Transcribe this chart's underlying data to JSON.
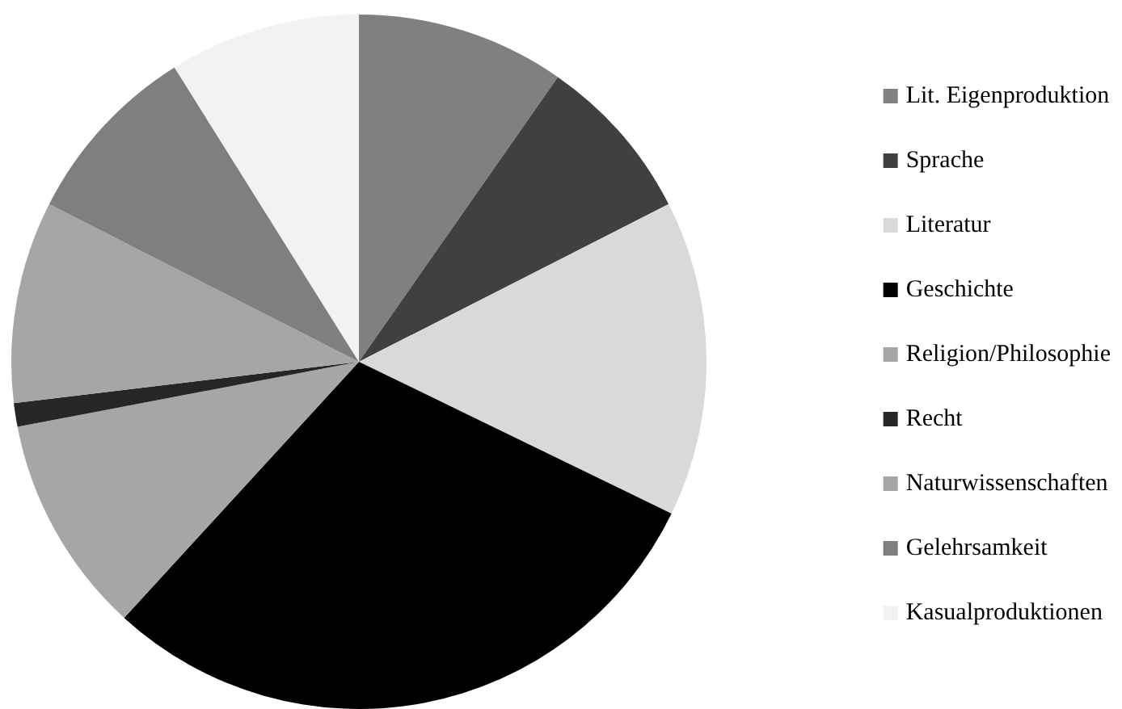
{
  "chart_data": {
    "type": "pie",
    "categories": [
      "Lit. Eigenproduktion",
      "Sprache",
      "Literatur",
      "Geschichte",
      "Religion/Philosophie",
      "Recht",
      "Naturwissenschaften",
      "Gelehrsamkeit",
      "Kasualproduktionen"
    ],
    "values": [
      9.7,
      7.8,
      14.7,
      29.6,
      10.2,
      1.1,
      9.4,
      8.6,
      8.9
    ],
    "colors": [
      "#808080",
      "#404040",
      "#d9d9d9",
      "#000000",
      "#a6a6a6",
      "#262626",
      "#a6a6a6",
      "#7f7f7f",
      "#f2f2f2"
    ],
    "legend": "right"
  }
}
